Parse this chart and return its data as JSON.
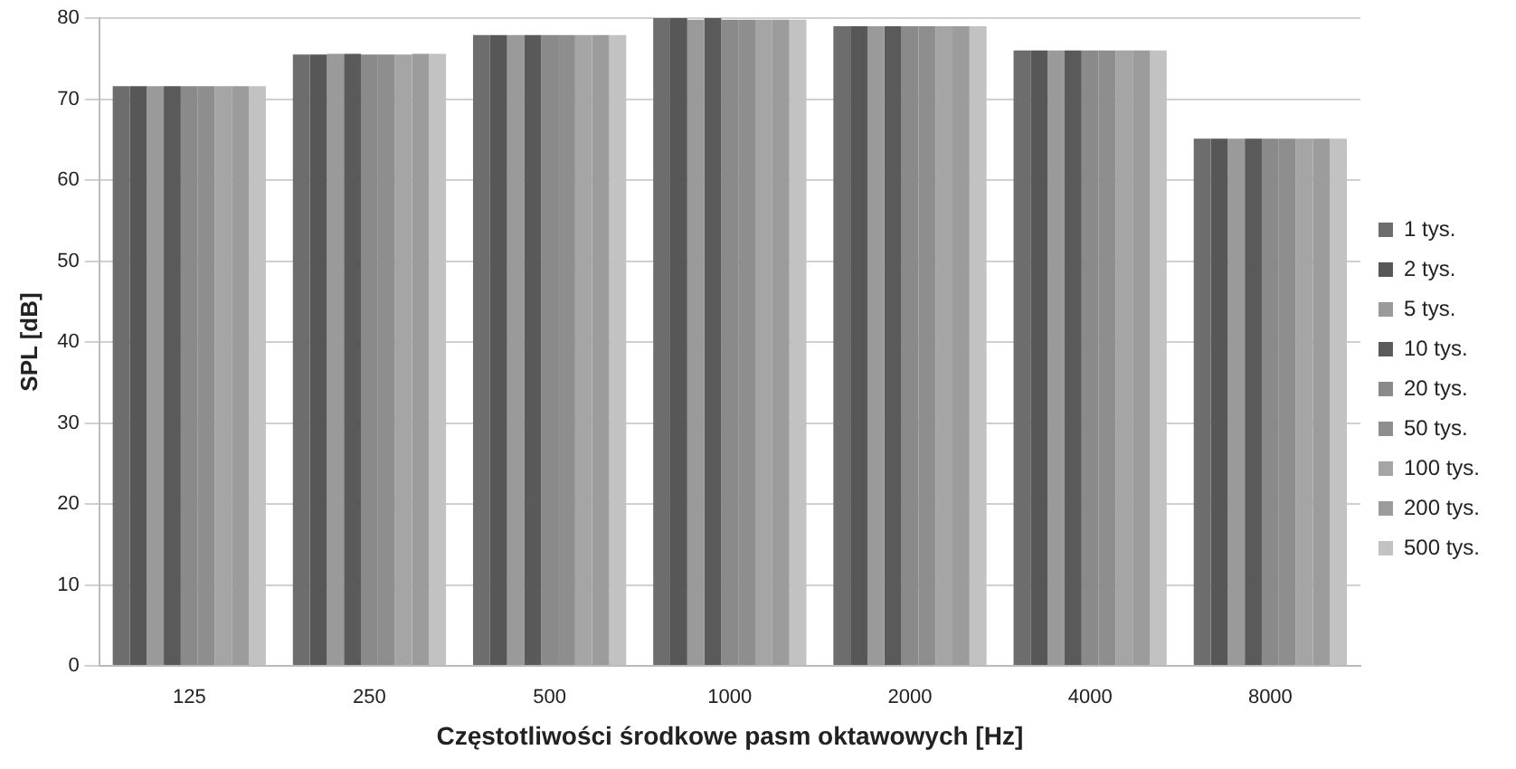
{
  "chart_data": {
    "type": "bar",
    "xlabel": "Częstotliwości środkowe pasm oktawowych [Hz]",
    "ylabel": "SPL [dB]",
    "categories": [
      "125",
      "250",
      "500",
      "1000",
      "2000",
      "4000",
      "8000"
    ],
    "series": [
      {
        "name": "1 tys.",
        "color": "#6d6d6d",
        "values": [
          71.6,
          75.5,
          77.9,
          80,
          79,
          76,
          65.1
        ]
      },
      {
        "name": "2 tys.",
        "color": "#575757",
        "values": [
          71.6,
          75.5,
          77.9,
          80,
          79,
          76,
          65.1
        ]
      },
      {
        "name": "5 tys.",
        "color": "#9a9a9a",
        "values": [
          71.6,
          75.6,
          77.9,
          79.8,
          79,
          76,
          65.1
        ]
      },
      {
        "name": "10 tys.",
        "color": "#5a5a5a",
        "values": [
          71.6,
          75.6,
          77.9,
          80,
          79,
          76,
          65.1
        ]
      },
      {
        "name": "20 tys.",
        "color": "#8a8a8a",
        "values": [
          71.6,
          75.5,
          77.9,
          79.8,
          79,
          76,
          65.1
        ]
      },
      {
        "name": "50 tys.",
        "color": "#8e8e8e",
        "values": [
          71.6,
          75.5,
          77.9,
          79.8,
          79,
          76,
          65.1
        ]
      },
      {
        "name": "100 tys.",
        "color": "#a5a5a5",
        "values": [
          71.6,
          75.5,
          77.9,
          79.8,
          79,
          76,
          65.1
        ]
      },
      {
        "name": "200 tys.",
        "color": "#9c9c9c",
        "values": [
          71.6,
          75.6,
          77.9,
          79.8,
          79,
          76,
          65.1
        ]
      },
      {
        "name": "500 tys.",
        "color": "#c2c2c2",
        "values": [
          71.6,
          75.6,
          77.9,
          79.8,
          79,
          76,
          65.1
        ]
      }
    ],
    "ylim": [
      0,
      80
    ],
    "yticks": [
      0,
      10,
      20,
      30,
      40,
      50,
      60,
      70,
      80
    ],
    "grid": "y",
    "legend": "right"
  }
}
